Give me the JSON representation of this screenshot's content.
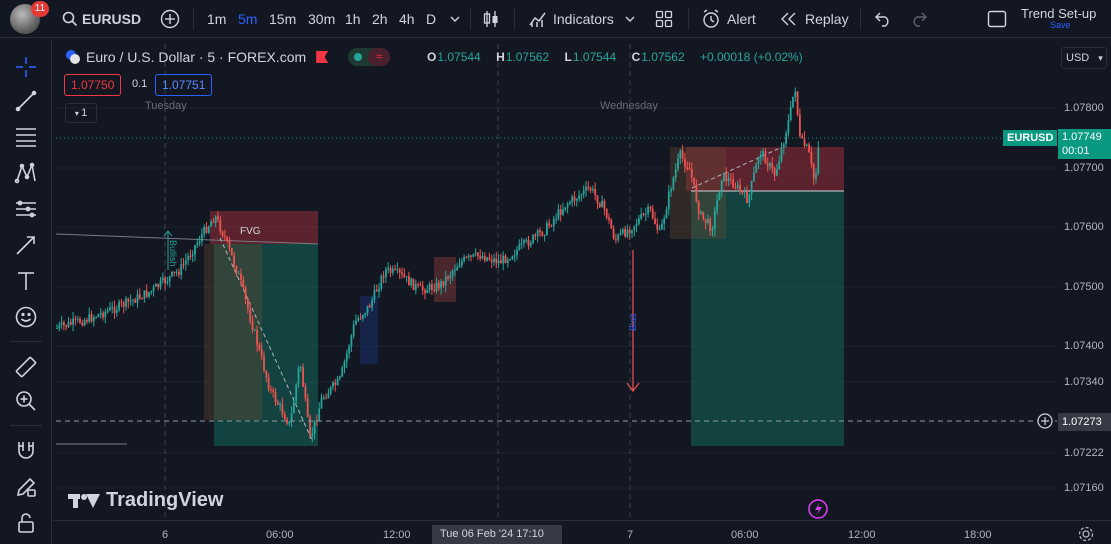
{
  "toolbar": {
    "notifications": "11",
    "symbol": "EURUSD",
    "intervals": [
      "1m",
      "5m",
      "15m",
      "30m",
      "1h",
      "2h",
      "4h",
      "D"
    ],
    "active_interval": "5m",
    "indicators_label": "Indicators",
    "alert_label": "Alert",
    "replay_label": "Replay",
    "layout_name": "Trend Set-up",
    "save_label": "Save"
  },
  "legend": {
    "title": "Euro / U.S. Dollar · 5 · FOREX.com",
    "open_label": "O",
    "open": "1.07544",
    "high_label": "H",
    "high": "1.07562",
    "low_label": "L",
    "low": "1.07544",
    "close_label": "C",
    "close": "1.07562",
    "change": "+0.00018 (+0.02%)",
    "sell_price": "1.07750",
    "spread": "0.1",
    "buy_price": "1.07751",
    "collapse_count": "1"
  },
  "price_axis": {
    "currency": "USD",
    "ticks": [
      "1.07800",
      "1.07700",
      "1.07600",
      "1.07500",
      "1.07400",
      "1.07340",
      "1.07222",
      "1.07160"
    ],
    "symbol_tag": "EURUSD",
    "last_price": "1.07749",
    "countdown": "00:01",
    "crosshair_price": "1.07273"
  },
  "time_axis": {
    "ticks": [
      "6",
      "06:00",
      "12:00",
      "7",
      "06:00",
      "12:00",
      "18:00"
    ],
    "crosshair_time": "Tue 06 Feb '24   17:10",
    "day_labels": [
      "Tuesday",
      "Wednesday"
    ]
  },
  "drawings": {
    "fvg_label": "FVG",
    "bullish_label": "Bullish",
    "bias_label": "Bias"
  },
  "brand": {
    "logo_text": "TradingView"
  },
  "colors": {
    "up": "#26a69a",
    "down": "#ef5350",
    "accent": "#2962ff",
    "tag": "#089981"
  }
}
